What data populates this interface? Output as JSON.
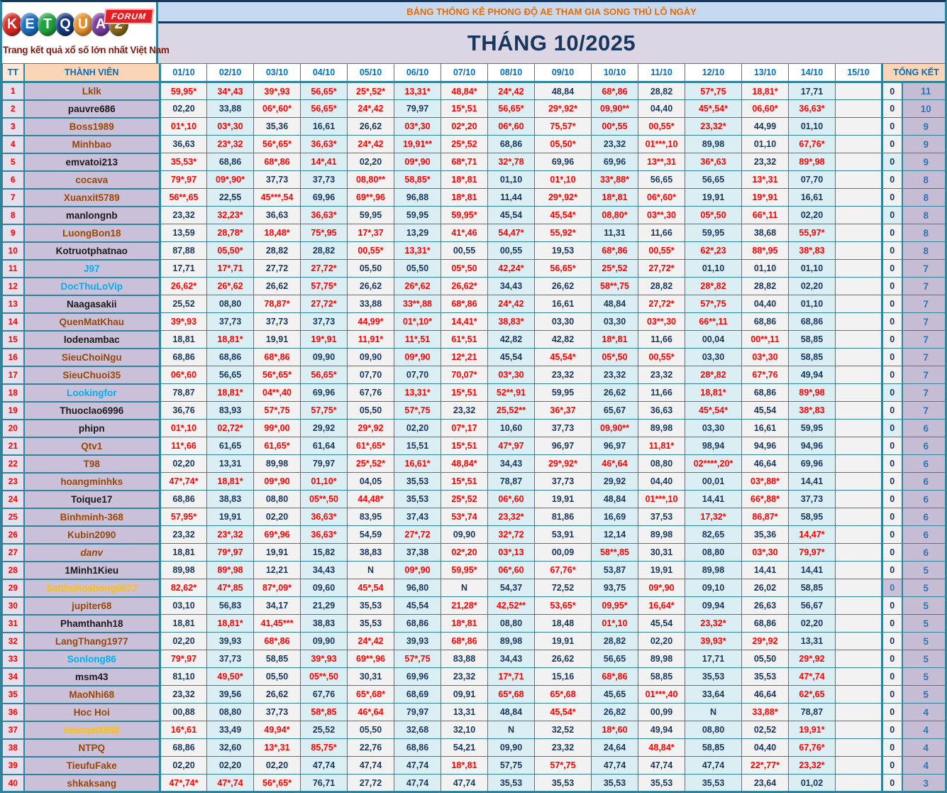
{
  "logo": {
    "letters": [
      {
        "ch": "K",
        "bg": "#D92B21"
      },
      {
        "ch": "E",
        "bg": "#1D6FC0"
      },
      {
        "ch": "T",
        "bg": "#1FA43D"
      },
      {
        "ch": "Q",
        "bg": "#14387F"
      },
      {
        "ch": "U",
        "bg": "#E8912D"
      },
      {
        "ch": "A",
        "bg": "#7A3E9D"
      },
      {
        "ch": "2",
        "bg": "#8A6D1C"
      }
    ],
    "forum_badge": "FORUM",
    "tagline": "Trang kết quả xổ số lớn nhất Việt Nam"
  },
  "banner": {
    "text": "BẢNG THỐNG KÊ PHONG ĐỘ AE THAM GIA SONG THỦ LÔ NGÀY"
  },
  "title": {
    "text": "THÁNG 10/2025"
  },
  "columns": {
    "tt": "TT",
    "member": "THÀNH VIÊN",
    "dates": [
      "01/10",
      "02/10",
      "03/10",
      "04/10",
      "05/10",
      "06/10",
      "07/10",
      "08/10",
      "09/10",
      "10/10",
      "11/10",
      "12/10",
      "13/10",
      "14/10",
      "15/10"
    ],
    "total": "TỔNG KẾT"
  },
  "zero_label": "0",
  "rows": [
    {
      "tt": 1,
      "name": "Lklk",
      "name_color": "brown",
      "vals": [
        "59,95*",
        "34*,43",
        "39*,93",
        "56,65*",
        "25*,52*",
        "13,31*",
        "48,84*",
        "24*,42",
        "48,84",
        "68*,86",
        "28,82",
        "57*,75",
        "18,81*",
        "17,71"
      ],
      "zero": "0",
      "zero_bg": "",
      "total": "11"
    },
    {
      "tt": 2,
      "name": "pauvre686",
      "name_color": "dark",
      "vals": [
        "02,20",
        "33,88",
        "06*,60*",
        "56,65*",
        "24*,42",
        "79,97",
        "15*,51",
        "56,65*",
        "29*,92*",
        "09,90**",
        "04,40",
        "45*,54*",
        "06,60*",
        "36,63*"
      ],
      "zero": "0",
      "zero_bg": "",
      "total": "10"
    },
    {
      "tt": 3,
      "name": "Boss1989",
      "name_color": "brown",
      "vals": [
        "01*,10",
        "03*,30",
        "35,36",
        "16,61",
        "26,62",
        "03*,30",
        "02*,20",
        "06*,60",
        "75,57*",
        "00*,55",
        "00,55*",
        "23,32*",
        "44,99",
        "01,10"
      ],
      "zero": "0",
      "zero_bg": "",
      "total": "9"
    },
    {
      "tt": 4,
      "name": "Minhbao",
      "name_color": "brown",
      "vals": [
        "36,63",
        "23*,32",
        "56*,65*",
        "36,63*",
        "24*,42",
        "19,91**",
        "25*,52",
        "68,86",
        "05,50*",
        "23,32",
        "01***,10",
        "89,98",
        "01,10",
        "67,76*"
      ],
      "zero": "0",
      "zero_bg": "",
      "total": "9"
    },
    {
      "tt": 5,
      "name": "emvatoi213",
      "name_color": "dark",
      "vals": [
        "35,53*",
        "68,86",
        "68*,86",
        "14*,41",
        "02,20",
        "09*,90",
        "68*,71",
        "32*,78",
        "69,96",
        "69,96",
        "13**,31",
        "36*,63",
        "23,32",
        "89*,98"
      ],
      "zero": "0",
      "zero_bg": "cyan",
      "total": "9"
    },
    {
      "tt": 6,
      "name": "cocava",
      "name_color": "brown",
      "vals": [
        "79*,97",
        "09*,90*",
        "37,73",
        "37,73",
        "08,80**",
        "58,85*",
        "18*,81",
        "01,10",
        "01*,10",
        "33*,88*",
        "56,65",
        "56,65",
        "13*,31",
        "07,70"
      ],
      "zero": "0",
      "zero_bg": "",
      "total": "8"
    },
    {
      "tt": 7,
      "name": "Xuanxit5789",
      "name_color": "brown",
      "vals": [
        "56**,65",
        "22,55",
        "45***,54",
        "69,96",
        "69**,96",
        "96,88",
        "18*,81",
        "11,44",
        "29*,92*",
        "18*,81",
        "06*,60*",
        "19,91",
        "19*,91",
        "16,61"
      ],
      "zero": "0",
      "zero_bg": "",
      "total": "8"
    },
    {
      "tt": 8,
      "name": "manlongnb",
      "name_color": "dark",
      "vals": [
        "23,32",
        "32,23*",
        "36,63",
        "36,63*",
        "59,95",
        "59,95",
        "59,95*",
        "45,54",
        "45,54*",
        "08,80*",
        "03**,30",
        "05*,50",
        "66*,11",
        "02,20"
      ],
      "zero": "0",
      "zero_bg": "cyan",
      "total": "8"
    },
    {
      "tt": 9,
      "name": "LuongBon18",
      "name_color": "brown",
      "vals": [
        "13,59",
        "28,78*",
        "18,48*",
        "75*,95",
        "17*,37",
        "13,29",
        "41*,46",
        "54,47*",
        "55,92*",
        "11,31",
        "11,66",
        "59,95",
        "38,68",
        "55,97*"
      ],
      "zero": "0",
      "zero_bg": "",
      "total": "8"
    },
    {
      "tt": 10,
      "name": "Kotruotphatnao",
      "name_color": "dark",
      "vals": [
        "87,88",
        "05,50*",
        "28,82",
        "28,82",
        "00,55*",
        "13,31*",
        "00,55",
        "00,55",
        "19,53",
        "68*,86",
        "00,55*",
        "62*,23",
        "88*,95",
        "38*,83"
      ],
      "zero": "0",
      "zero_bg": "",
      "total": "8"
    },
    {
      "tt": 11,
      "name": "J97",
      "name_color": "blue",
      "vals": [
        "17,71",
        "17*,71",
        "27,72",
        "27,72*",
        "05,50",
        "05,50",
        "05*,50",
        "42,24*",
        "56,65*",
        "25*,52",
        "27,72*",
        "01,10",
        "01,10",
        "01,10"
      ],
      "zero": "0",
      "zero_bg": "",
      "total": "7"
    },
    {
      "tt": 12,
      "name": "DocThuLoVip",
      "name_color": "blue",
      "vals": [
        "26,62*",
        "26*,62",
        "26,62",
        "57,75*",
        "26,62",
        "26*,62",
        "26,62*",
        "34,43",
        "26,62",
        "58**,75",
        "28,82",
        "28*,82",
        "28,82",
        "02,20"
      ],
      "zero": "0",
      "zero_bg": "",
      "total": "7"
    },
    {
      "tt": 13,
      "name": "Naagasakii",
      "name_color": "dark",
      "vals": [
        "25,52",
        "08,80",
        "78,87*",
        "27,72*",
        "33,88",
        "33**,88",
        "68*,86",
        "24*,42",
        "16,61",
        "48,84",
        "27,72*",
        "57*,75",
        "04,40",
        "01,10"
      ],
      "zero": "0",
      "zero_bg": "",
      "total": "7"
    },
    {
      "tt": 14,
      "name": "QuenMatKhau",
      "name_color": "brown",
      "vals": [
        "39*,93",
        "37,73",
        "37,73",
        "37,73",
        "44,99*",
        "01*,10*",
        "14,41*",
        "38,83*",
        "03,30",
        "03,30",
        "03**,30",
        "66**,11",
        "68,86",
        "68,86"
      ],
      "zero": "0",
      "zero_bg": "",
      "total": "7"
    },
    {
      "tt": 15,
      "name": "lodenambac",
      "name_color": "dark",
      "vals": [
        "18,81",
        "18,81*",
        "19,91",
        "19*,91",
        "11,91*",
        "11*,51",
        "61*,51",
        "42,82",
        "42,82",
        "18*,81",
        "11,66",
        "00,04",
        "00**,11",
        "58,85"
      ],
      "zero": "0",
      "zero_bg": "",
      "total": "7"
    },
    {
      "tt": 16,
      "name": "SieuChoiNgu",
      "name_color": "brown",
      "vals": [
        "68,86",
        "68,86",
        "68*,86",
        "09,90",
        "09,90",
        "09*,90",
        "12*,21",
        "45,54",
        "45,54*",
        "05*,50",
        "00,55*",
        "03,30",
        "03*,30",
        "58,85"
      ],
      "zero": "0",
      "zero_bg": "",
      "total": "7"
    },
    {
      "tt": 17,
      "name": "SieuChuoi35",
      "name_color": "brown",
      "vals": [
        "06*,60",
        "56,65",
        "56*,65*",
        "56,65*",
        "07,70",
        "07,70",
        "70,07*",
        "03*,30",
        "23,32",
        "23,32",
        "23,32",
        "28*,82",
        "67*,76",
        "49,94"
      ],
      "zero": "0",
      "zero_bg": "",
      "total": "7"
    },
    {
      "tt": 18,
      "name": "Lookingfor",
      "name_color": "blue",
      "vals": [
        "78,87",
        "18,81*",
        "04**,40",
        "69,96",
        "67,76",
        "13,31*",
        "15*,51",
        "52**,91",
        "59,95",
        "26,62",
        "11,66",
        "18,81*",
        "68,86",
        "89*,98"
      ],
      "zero": "0",
      "zero_bg": "cyan",
      "total": "7"
    },
    {
      "tt": 19,
      "name": "Thuoclao6996",
      "name_color": "dark",
      "vals": [
        "36,76",
        "83,93",
        "57*,75",
        "57,75*",
        "05,50",
        "57*,75",
        "23,32",
        "25,52**",
        "36*,37",
        "65,67",
        "36,63",
        "45*,54*",
        "45,54",
        "38*,83"
      ],
      "zero": "0",
      "zero_bg": "",
      "total": "7"
    },
    {
      "tt": 20,
      "name": "phipn",
      "name_color": "dark",
      "vals": [
        "01*,10",
        "02,72*",
        "99*,00",
        "29,92",
        "29*,92",
        "02,20",
        "07*,17",
        "10,60",
        "37,73",
        "09,90**",
        "89,98",
        "03,30",
        "16,61",
        "59,95"
      ],
      "zero": "0",
      "zero_bg": "cyan",
      "total": "6"
    },
    {
      "tt": 21,
      "name": "Qtv1",
      "name_color": "brown",
      "vals": [
        "11*,66",
        "61,65",
        "61,65*",
        "61,64",
        "61*,65*",
        "15,51",
        "15*,51",
        "47*,97",
        "96,97",
        "96,97",
        "11,81*",
        "98,94",
        "94,96",
        "94,96"
      ],
      "zero": "0",
      "zero_bg": "",
      "total": "6"
    },
    {
      "tt": 22,
      "name": "T98",
      "name_color": "brown",
      "vals": [
        "02,20",
        "13,31",
        "89,98",
        "79,97",
        "25*,52*",
        "16,61*",
        "48,84*",
        "34,43",
        "29*,92*",
        "46*,64",
        "08,80",
        "02****,20*",
        "46,64",
        "69,96"
      ],
      "zero": "0",
      "zero_bg": "",
      "total": "6"
    },
    {
      "tt": 23,
      "name": "hoangminhks",
      "name_color": "brown",
      "vals": [
        "47*,74*",
        "18,81*",
        "09*,90",
        "01,10*",
        "04,05",
        "35,53",
        "15*,51",
        "78,87",
        "37,73",
        "29,92",
        "04,40",
        "00,01",
        "03*,88*",
        "14,41"
      ],
      "zero": "0",
      "zero_bg": "",
      "total": "6"
    },
    {
      "tt": 24,
      "name": "Toique17",
      "name_color": "dark",
      "vals": [
        "68,86",
        "38,83",
        "08,80",
        "05**,50",
        "44,48*",
        "35,53",
        "25*,52",
        "06*,60",
        "19,91",
        "48,84",
        "01***,10",
        "14,41",
        "66*,88*",
        "37,73"
      ],
      "zero": "0",
      "zero_bg": "",
      "total": "6"
    },
    {
      "tt": 25,
      "name": "Binhminh-368",
      "name_color": "brown",
      "vals": [
        "57,95*",
        "19,91",
        "02,20",
        "36,63*",
        "83,95",
        "37,43",
        "53*,74",
        "23,32*",
        "81,86",
        "16,69",
        "37,53",
        "17,32*",
        "86,87*",
        "58,95"
      ],
      "zero": "0",
      "zero_bg": "",
      "total": "6"
    },
    {
      "tt": 26,
      "name": "Kubin2090",
      "name_color": "brown",
      "vals": [
        "23,32",
        "23*,32",
        "69*,96",
        "36,63*",
        "54,59",
        "27*,72",
        "09,90",
        "32*,72",
        "53,91",
        "12,14",
        "89,98",
        "82,65",
        "35,36",
        "14,47*"
      ],
      "zero": "0",
      "zero_bg": "",
      "total": "6"
    },
    {
      "tt": 27,
      "name": "danv",
      "name_color": "brown",
      "italic": true,
      "vals": [
        "18,81",
        "79*,97",
        "19,91",
        "15,82",
        "38,83",
        "37,38",
        "02*,20",
        "03*,13",
        "00,09",
        "58**,85",
        "30,31",
        "08,80",
        "03*,30",
        "79,97*"
      ],
      "zero": "0",
      "zero_bg": "",
      "total": "6"
    },
    {
      "tt": 28,
      "name": "1Minh1Kieu",
      "name_color": "dark",
      "vals": [
        "89,98",
        "89*,98",
        "12,21",
        "34,43",
        "N",
        "09*,90",
        "59,95*",
        "06*,60",
        "67,76*",
        "53,87",
        "19,91",
        "89,98",
        "14,41",
        "14,41"
      ],
      "zero": "0",
      "zero_bg": "",
      "total": "5"
    },
    {
      "tt": 29,
      "name": "Satthuhoahong6677",
      "name_color": "orange",
      "vals": [
        "82,62*",
        "47*,85",
        "87*,09*",
        "09,60",
        "45*,54",
        "96,80",
        "N",
        "54,37",
        "72,52",
        "93,75",
        "09*,90",
        "09,10",
        "26,02",
        "58,85"
      ],
      "zero": "0",
      "zero_bg": "lav",
      "total": "5"
    },
    {
      "tt": 30,
      "name": "jupiter68",
      "name_color": "brown",
      "vals": [
        "03,10",
        "56,83",
        "34,17",
        "21,29",
        "35,53",
        "45,54",
        "21,28*",
        "42,52**",
        "53,65*",
        "09,95*",
        "16,64*",
        "09,94",
        "26,63",
        "56,67"
      ],
      "zero": "0",
      "zero_bg": "",
      "total": "5"
    },
    {
      "tt": 31,
      "name": "Phamthanh18",
      "name_color": "dark",
      "vals": [
        "18,81",
        "18,81*",
        "41,45***",
        "38,83",
        "35,53",
        "68,86",
        "18*,81",
        "08,80",
        "18,48",
        "01*,10",
        "45,54",
        "23,32*",
        "68,86",
        "02,20"
      ],
      "zero": "0",
      "zero_bg": "",
      "total": "5"
    },
    {
      "tt": 32,
      "name": "LangThang1977",
      "name_color": "brown",
      "vals": [
        "02,20",
        "39,93",
        "68*,86",
        "09,90",
        "24*,42",
        "39,93",
        "68*,86",
        "89,98",
        "19,91",
        "28,82",
        "02,20",
        "39,93*",
        "29*,92",
        "13,31"
      ],
      "zero": "0",
      "zero_bg": "",
      "total": "5"
    },
    {
      "tt": 33,
      "name": "Sonlong86",
      "name_color": "blue",
      "vals": [
        "79*,97",
        "37,73",
        "58,85",
        "39*,93",
        "69**,96",
        "57*,75",
        "83,88",
        "34,43",
        "26,62",
        "56,65",
        "89,98",
        "17,71",
        "05,50",
        "29*,92"
      ],
      "zero": "0",
      "zero_bg": "",
      "total": "5"
    },
    {
      "tt": 34,
      "name": "msm43",
      "name_color": "dark",
      "vals": [
        "81,10",
        "49,50*",
        "05,50",
        "05**,50",
        "30,31",
        "69,96",
        "23,32",
        "17*,71",
        "15,16",
        "68*,86",
        "58,85",
        "35,53",
        "35,53",
        "47*,74"
      ],
      "zero": "0",
      "zero_bg": "",
      "total": "5"
    },
    {
      "tt": 35,
      "name": "MaoNhi68",
      "name_color": "brown",
      "vals": [
        "23,32",
        "39,56",
        "26,62",
        "67,76",
        "65*,68*",
        "68,69",
        "09,91",
        "65*,68",
        "65*,68",
        "45,65",
        "01***,40",
        "33,64",
        "46,64",
        "62*,65"
      ],
      "zero": "0",
      "zero_bg": "",
      "total": "5"
    },
    {
      "tt": 36,
      "name": "Hoc Hoi",
      "name_color": "brown",
      "vals": [
        "00,88",
        "08,80",
        "37,73",
        "58*,85",
        "46*,64",
        "79,97",
        "13,31",
        "48,84",
        "45,54*",
        "26,82",
        "00,99",
        "N",
        "33,88*",
        "78,87"
      ],
      "zero": "0",
      "zero_bg": "",
      "total": "4"
    },
    {
      "tt": 37,
      "name": "Hainam8888",
      "name_color": "orange",
      "vals": [
        "16*,61",
        "33,49",
        "49,94*",
        "25,52",
        "05,50",
        "32,68",
        "32,10",
        "N",
        "32,52",
        "18*,60",
        "49,94",
        "08,80",
        "02,52",
        "19,91*"
      ],
      "zero": "0",
      "zero_bg": "",
      "total": "4"
    },
    {
      "tt": 38,
      "name": "NTPQ",
      "name_color": "brown",
      "vals": [
        "68,86",
        "32,60",
        "13*,31",
        "85,75*",
        "22,76",
        "68,86",
        "54,21",
        "09,90",
        "23,32",
        "24,64",
        "48,84*",
        "58,85",
        "04,40",
        "67,76*"
      ],
      "zero": "0",
      "zero_bg": "",
      "total": "4"
    },
    {
      "tt": 39,
      "name": "TieufuFake",
      "name_color": "brown",
      "vals": [
        "02,20",
        "02,20",
        "02,20",
        "47,74",
        "47,74",
        "47,74",
        "18*,81",
        "57,75",
        "57*,75",
        "47,74",
        "47,74",
        "47,74",
        "22*,77*",
        "23,32*"
      ],
      "zero": "0",
      "zero_bg": "",
      "total": "4"
    },
    {
      "tt": 40,
      "name": "shkaksang",
      "name_color": "brown",
      "vals": [
        "47*,74*",
        "47*,74",
        "56*,65*",
        "76,71",
        "27,72",
        "47,74",
        "47,74",
        "35,53",
        "35,53",
        "35,53",
        "35,53",
        "35,53",
        "23,64",
        "01,02"
      ],
      "zero": "0",
      "zero_bg": "",
      "total": "3"
    }
  ]
}
